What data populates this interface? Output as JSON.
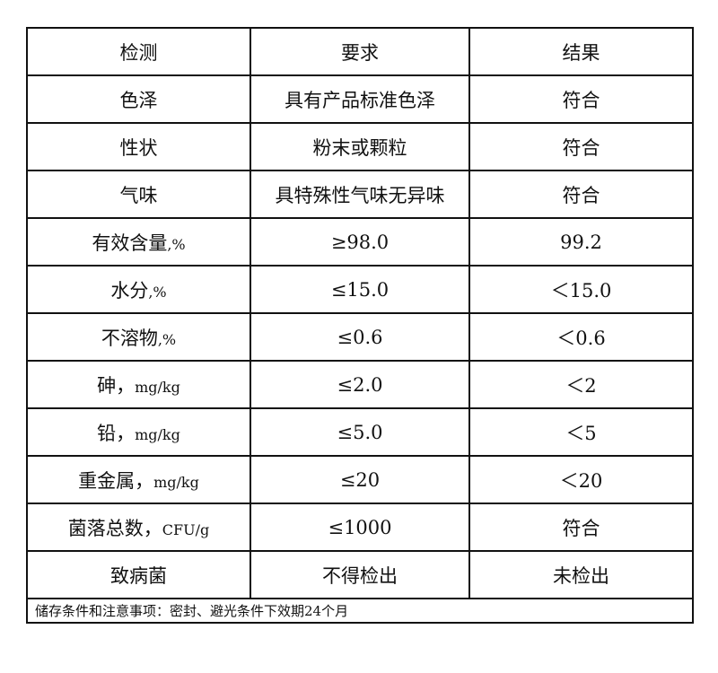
{
  "header": [
    "检测",
    "要求",
    "结果"
  ],
  "rows": [
    {
      "item": "色泽",
      "unit": "",
      "requirement": "具有产品标准色泽",
      "result": "符合"
    },
    {
      "item": "性状",
      "unit": "",
      "requirement": "粉末或颗粒",
      "result": "符合"
    },
    {
      "item": "气味",
      "unit": "",
      "requirement": "具特殊性气味无异味",
      "result": "符合"
    },
    {
      "item": "有效含量",
      "unit": ",%",
      "requirement": "≥98.0",
      "result": "99.2"
    },
    {
      "item": "水分",
      "unit": ",%",
      "requirement": "≤15.0",
      "result": "＜15.0"
    },
    {
      "item": "不溶物",
      "unit": ",%",
      "requirement": "≤0.6",
      "result": "＜0.6"
    },
    {
      "item": "砷，",
      "unit": "mg/kg",
      "requirement": "≤2.0",
      "result": "＜2"
    },
    {
      "item": "铅，",
      "unit": "mg/kg",
      "requirement": "≤5.0",
      "result": "＜5"
    },
    {
      "item": "重金属，",
      "unit": "mg/kg",
      "requirement": "≤20",
      "result": "＜20"
    },
    {
      "item": "菌落总数，",
      "unit": "CFU/g",
      "requirement": "≤1000",
      "result": "符合"
    },
    {
      "item": "致病菌",
      "unit": "",
      "requirement": "不得检出",
      "result": "未检出"
    }
  ],
  "footer": "储存条件和注意事项：密封、避光条件下效期24个月"
}
